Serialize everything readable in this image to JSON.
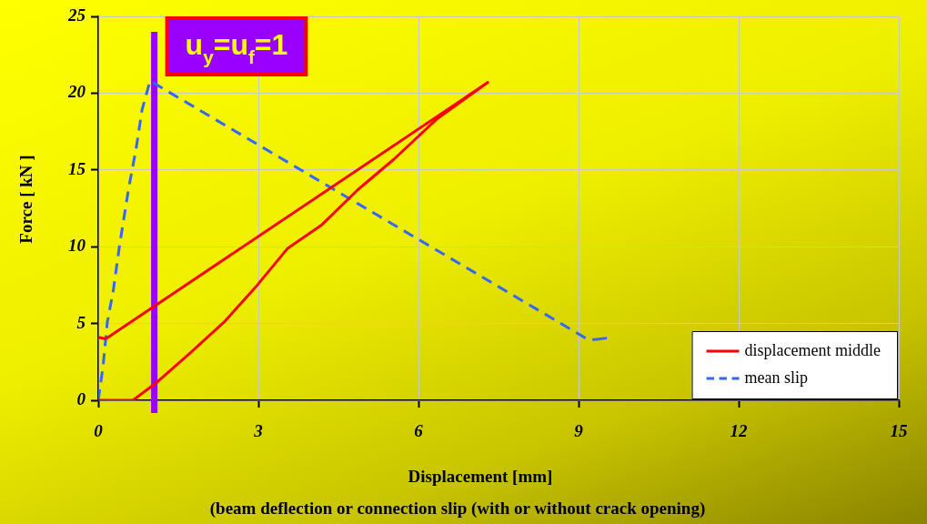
{
  "chart_data": {
    "type": "line",
    "xlabel": "Displacement [mm]",
    "ylabel": "Force [ kN ]",
    "annotations": [
      "(beam deflection or connection slip (with or without crack opening)"
    ],
    "xlim": [
      0,
      15
    ],
    "xticks": [
      0,
      3,
      6,
      9,
      12,
      15
    ],
    "ylim": [
      0,
      25
    ],
    "yticks": [
      0,
      5,
      10,
      15,
      20,
      25
    ],
    "grid": true,
    "legend": "bottom right",
    "marker": "none",
    "series": [
      {
        "name": "displacement middle",
        "color": "#ff0000",
        "line_style": "solid",
        "x": [
          0,
          0.65,
          1.11,
          1.73,
          2.36,
          2.98,
          3.55,
          4.18,
          4.86,
          5.54,
          6.34,
          7.3,
          0.14,
          0
        ],
        "values": [
          0,
          0,
          1.2,
          3.1,
          5.1,
          7.5,
          9.9,
          11.4,
          13.7,
          15.7,
          18.3,
          20.7,
          4,
          4.1
        ]
      },
      {
        "name": "mean slip",
        "color": "#3366ff",
        "line_style": "dashed",
        "x": [
          0,
          0.09,
          0.17,
          0.28,
          0.4,
          0.57,
          0.71,
          0.82,
          0.97,
          9.18,
          9.31,
          9.53
        ],
        "values": [
          0,
          2.2,
          5.1,
          7.1,
          10.1,
          13.8,
          16.4,
          18.9,
          20.8,
          3.95,
          3.95,
          4.05
        ]
      }
    ],
    "ref_lines": [
      {
        "axis": "x",
        "value": 1.05,
        "label": "u$_{y}$=u$_{f}$=1",
        "color": "#9900ff"
      }
    ]
  }
}
